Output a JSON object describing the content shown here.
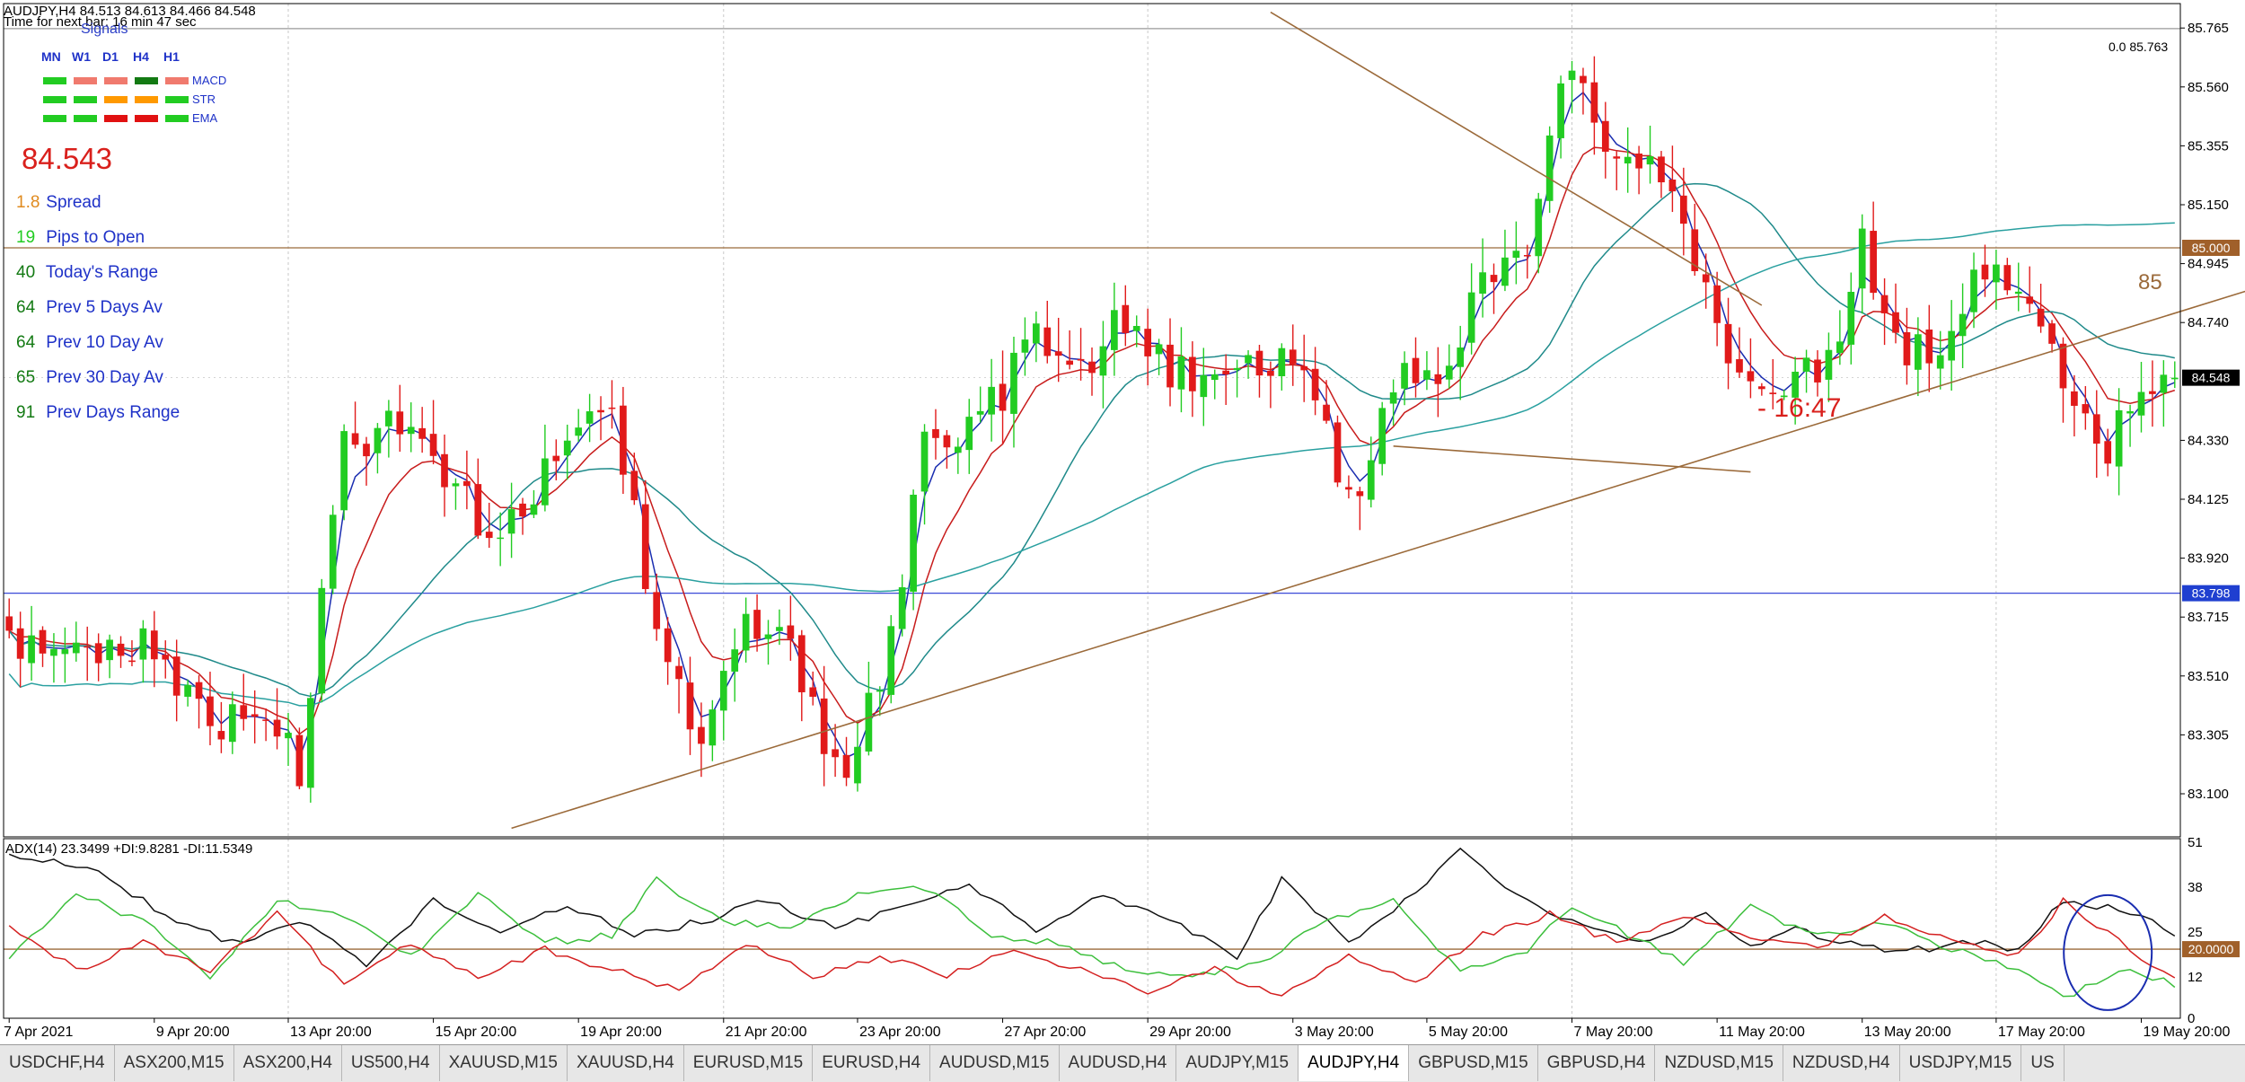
{
  "header": {
    "symbol_line": "AUDJPY,H4  84.513 84.613 84.466 84.548",
    "timer": "Time for next bar: 16 min 47 sec"
  },
  "signals": {
    "title": "Signals",
    "timeframes": [
      "MN",
      "W1",
      "D1",
      "H4",
      "H1"
    ],
    "rows": [
      {
        "label": "MACD",
        "colors": [
          "#22cc22",
          "#f07a6e",
          "#f07a6e",
          "#137a13",
          "#f07a6e"
        ]
      },
      {
        "label": "STR",
        "colors": [
          "#22cc22",
          "#22cc22",
          "#ff9900",
          "#ff9900",
          "#22cc22"
        ]
      },
      {
        "label": "EMA",
        "colors": [
          "#22cc22",
          "#22cc22",
          "#e11111",
          "#e11111",
          "#22cc22"
        ]
      }
    ]
  },
  "info": {
    "price": "84.543",
    "stats": [
      {
        "value": "1.8",
        "label": "Spread",
        "color": "#e08a1e"
      },
      {
        "value": "19",
        "label": "Pips to Open",
        "color": "#22cc22"
      },
      {
        "value": "40",
        "label": "Today's Range",
        "color": "#137a13"
      },
      {
        "value": "64",
        "label": "Prev 5 Days Av",
        "color": "#137a13"
      },
      {
        "value": "64",
        "label": "Prev 10 Day Av",
        "color": "#137a13"
      },
      {
        "value": "65",
        "label": "Prev 30 Day Av",
        "color": "#137a13"
      },
      {
        "value": "91",
        "label": "Prev Days Range",
        "color": "#137a13"
      }
    ]
  },
  "annotations": {
    "countdown": "- 16:47",
    "level_label": "85",
    "fib_label": "0.0   85.763"
  },
  "indicator": {
    "label": "ADX(14) 23.3499 +DI:9.8281 -DI:11.5349"
  },
  "tabs": [
    {
      "label": "USDCHF,H4",
      "active": false
    },
    {
      "label": "ASX200,M15",
      "active": false
    },
    {
      "label": "ASX200,H4",
      "active": false
    },
    {
      "label": "US500,H4",
      "active": false
    },
    {
      "label": "XAUUSD,M15",
      "active": false
    },
    {
      "label": "XAUUSD,H4",
      "active": false
    },
    {
      "label": "EURUSD,M15",
      "active": false
    },
    {
      "label": "EURUSD,H4",
      "active": false
    },
    {
      "label": "AUDUSD,M15",
      "active": false
    },
    {
      "label": "AUDUSD,H4",
      "active": false
    },
    {
      "label": "AUDJPY,M15",
      "active": false
    },
    {
      "label": "AUDJPY,H4",
      "active": true
    },
    {
      "label": "GBPUSD,M15",
      "active": false
    },
    {
      "label": "GBPUSD,H4",
      "active": false
    },
    {
      "label": "NZDUSD,M15",
      "active": false
    },
    {
      "label": "NZDUSD,H4",
      "active": false
    },
    {
      "label": "USDJPY,M15",
      "active": false
    },
    {
      "label": "US",
      "active": false
    }
  ],
  "colors": {
    "bull": "#22cc22",
    "bear": "#e11a1a",
    "ema_fast": "#1a2db0",
    "ema_mid": "#c81c1c",
    "ema_slow": "#1f8a8a",
    "ema_200": "#2aa0a0",
    "trendline": "#9b6a3a",
    "adx": "#111111",
    "plus_di": "#3cbf3c",
    "minus_di": "#d42020",
    "circle": "#1a2db0"
  },
  "chart_data": [
    {
      "type": "candlestick",
      "symbol": "AUDJPY",
      "timeframe": "H4",
      "ylim": [
        82.95,
        85.85
      ],
      "y_ticks": [
        85.765,
        85.56,
        85.355,
        85.15,
        84.945,
        84.74,
        84.33,
        84.125,
        83.92,
        83.715,
        83.51,
        83.305,
        83.1
      ],
      "x_tick_labels": [
        "7 Apr 2021",
        "9 Apr 20:00",
        "13 Apr 20:00",
        "15 Apr 20:00",
        "19 Apr 20:00",
        "21 Apr 20:00",
        "23 Apr 20:00",
        "27 Apr 20:00",
        "29 Apr 20:00",
        "3 May 20:00",
        "5 May 20:00",
        "7 May 20:00",
        "11 May 20:00",
        "13 May 20:00",
        "17 May 20:00",
        "19 May 20:00"
      ],
      "anchors": [
        [
          0,
          83.62
        ],
        [
          6,
          83.55
        ],
        [
          12,
          83.62
        ],
        [
          16,
          83.4
        ],
        [
          22,
          83.33
        ],
        [
          26,
          83.2
        ],
        [
          30,
          84.3
        ],
        [
          34,
          84.38
        ],
        [
          38,
          84.3
        ],
        [
          44,
          83.95
        ],
        [
          50,
          84.32
        ],
        [
          54,
          84.5
        ],
        [
          58,
          83.65
        ],
        [
          62,
          83.3
        ],
        [
          66,
          83.7
        ],
        [
          70,
          83.57
        ],
        [
          74,
          83.15
        ],
        [
          78,
          83.45
        ],
        [
          82,
          84.3
        ],
        [
          88,
          84.44
        ],
        [
          92,
          84.72
        ],
        [
          96,
          84.58
        ],
        [
          100,
          84.78
        ],
        [
          104,
          84.58
        ],
        [
          108,
          84.48
        ],
        [
          112,
          84.62
        ],
        [
          116,
          84.63
        ],
        [
          120,
          84.12
        ],
        [
          124,
          84.5
        ],
        [
          128,
          84.58
        ],
        [
          132,
          84.85
        ],
        [
          136,
          85.05
        ],
        [
          140,
          85.68
        ],
        [
          144,
          85.3
        ],
        [
          148,
          85.22
        ],
        [
          152,
          84.85
        ],
        [
          156,
          84.5
        ],
        [
          160,
          84.55
        ],
        [
          164,
          84.62
        ],
        [
          166,
          85.0
        ],
        [
          168,
          84.72
        ],
        [
          172,
          84.6
        ],
        [
          176,
          84.9
        ],
        [
          180,
          84.88
        ],
        [
          184,
          84.58
        ],
        [
          186,
          84.38
        ],
        [
          188,
          84.32
        ],
        [
          190,
          84.48
        ],
        [
          192,
          84.5
        ],
        [
          194,
          84.548
        ]
      ],
      "current_price": 84.548,
      "horizontal_levels": [
        {
          "price": 85.763,
          "label": "85.763"
        },
        {
          "price": 85.0,
          "label": "85.000"
        },
        {
          "price": 83.798,
          "label": "83.798"
        }
      ],
      "price_tag": "84.548",
      "trendlines": [
        {
          "from": [
            45,
            82.98
          ],
          "to": [
            242,
            85.35
          ],
          "note": "rising support"
        },
        {
          "from": [
            113,
            85.82
          ],
          "to": [
            157,
            84.8
          ],
          "note": "falling resistance"
        },
        {
          "from": [
            124,
            84.31
          ],
          "to": [
            156,
            84.22
          ],
          "note": "lower support"
        }
      ]
    },
    {
      "type": "line",
      "title": "ADX(14) 23.3499 +DI:9.8281 -DI:11.5349",
      "ylim": [
        0,
        52
      ],
      "y_ticks": [
        51,
        38,
        25,
        12,
        0
      ],
      "reference_level": {
        "value": 20,
        "label": "20.0000"
      },
      "series": [
        {
          "name": "ADX",
          "anchors": [
            [
              0,
              48
            ],
            [
              8,
              42
            ],
            [
              14,
              30
            ],
            [
              20,
              22
            ],
            [
              26,
              28
            ],
            [
              32,
              16
            ],
            [
              38,
              34
            ],
            [
              44,
              24
            ],
            [
              50,
              33
            ],
            [
              56,
              24
            ],
            [
              62,
              28
            ],
            [
              68,
              34
            ],
            [
              74,
              26
            ],
            [
              80,
              32
            ],
            [
              86,
              38
            ],
            [
              92,
              26
            ],
            [
              98,
              36
            ],
            [
              104,
              28
            ],
            [
              110,
              18
            ],
            [
              114,
              40
            ],
            [
              120,
              22
            ],
            [
              126,
              36
            ],
            [
              130,
              50
            ],
            [
              134,
              38
            ],
            [
              140,
              28
            ],
            [
              146,
              22
            ],
            [
              152,
              30
            ],
            [
              156,
              20
            ],
            [
              160,
              26
            ],
            [
              164,
              22
            ],
            [
              168,
              20
            ],
            [
              172,
              20
            ],
            [
              176,
              22
            ],
            [
              180,
              20
            ],
            [
              184,
              34
            ],
            [
              188,
              32
            ],
            [
              192,
              28
            ],
            [
              194,
              23.35
            ]
          ]
        },
        {
          "name": "+DI",
          "anchors": [
            [
              0,
              18
            ],
            [
              6,
              36
            ],
            [
              12,
              28
            ],
            [
              18,
              12
            ],
            [
              24,
              34
            ],
            [
              30,
              30
            ],
            [
              36,
              18
            ],
            [
              42,
              36
            ],
            [
              48,
              22
            ],
            [
              54,
              24
            ],
            [
              58,
              40
            ],
            [
              64,
              28
            ],
            [
              70,
              26
            ],
            [
              76,
              36
            ],
            [
              82,
              38
            ],
            [
              88,
              24
            ],
            [
              94,
              22
            ],
            [
              100,
              14
            ],
            [
              106,
              12
            ],
            [
              112,
              16
            ],
            [
              118,
              28
            ],
            [
              124,
              34
            ],
            [
              130,
              14
            ],
            [
              136,
              20
            ],
            [
              140,
              32
            ],
            [
              144,
              26
            ],
            [
              150,
              16
            ],
            [
              156,
              32
            ],
            [
              162,
              24
            ],
            [
              168,
              28
            ],
            [
              174,
              20
            ],
            [
              180,
              14
            ],
            [
              184,
              6
            ],
            [
              190,
              14
            ],
            [
              194,
              9.83
            ]
          ]
        },
        {
          "name": "-DI",
          "anchors": [
            [
              0,
              26
            ],
            [
              6,
              14
            ],
            [
              12,
              22
            ],
            [
              18,
              14
            ],
            [
              24,
              30
            ],
            [
              30,
              10
            ],
            [
              36,
              22
            ],
            [
              42,
              12
            ],
            [
              48,
              20
            ],
            [
              54,
              14
            ],
            [
              60,
              8
            ],
            [
              66,
              22
            ],
            [
              72,
              12
            ],
            [
              78,
              18
            ],
            [
              84,
              12
            ],
            [
              90,
              20
            ],
            [
              96,
              14
            ],
            [
              102,
              8
            ],
            [
              108,
              14
            ],
            [
              114,
              6
            ],
            [
              120,
              18
            ],
            [
              126,
              10
            ],
            [
              132,
              24
            ],
            [
              138,
              30
            ],
            [
              144,
              22
            ],
            [
              150,
              30
            ],
            [
              156,
              24
            ],
            [
              162,
              20
            ],
            [
              168,
              30
            ],
            [
              174,
              22
            ],
            [
              180,
              18
            ],
            [
              184,
              34
            ],
            [
              190,
              20
            ],
            [
              194,
              11.53
            ]
          ]
        }
      ]
    }
  ]
}
